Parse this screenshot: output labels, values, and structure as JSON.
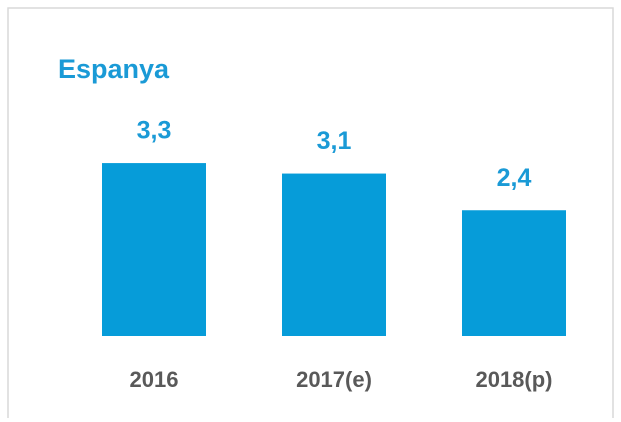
{
  "chart_data": {
    "type": "bar",
    "title": "Espanya",
    "categories": [
      "2016",
      "2017(e)",
      "2018(p)"
    ],
    "values": [
      3.3,
      3.1,
      2.4
    ],
    "value_labels": [
      "3,3",
      "3,1",
      "2,4"
    ],
    "color": "#069cd9"
  }
}
